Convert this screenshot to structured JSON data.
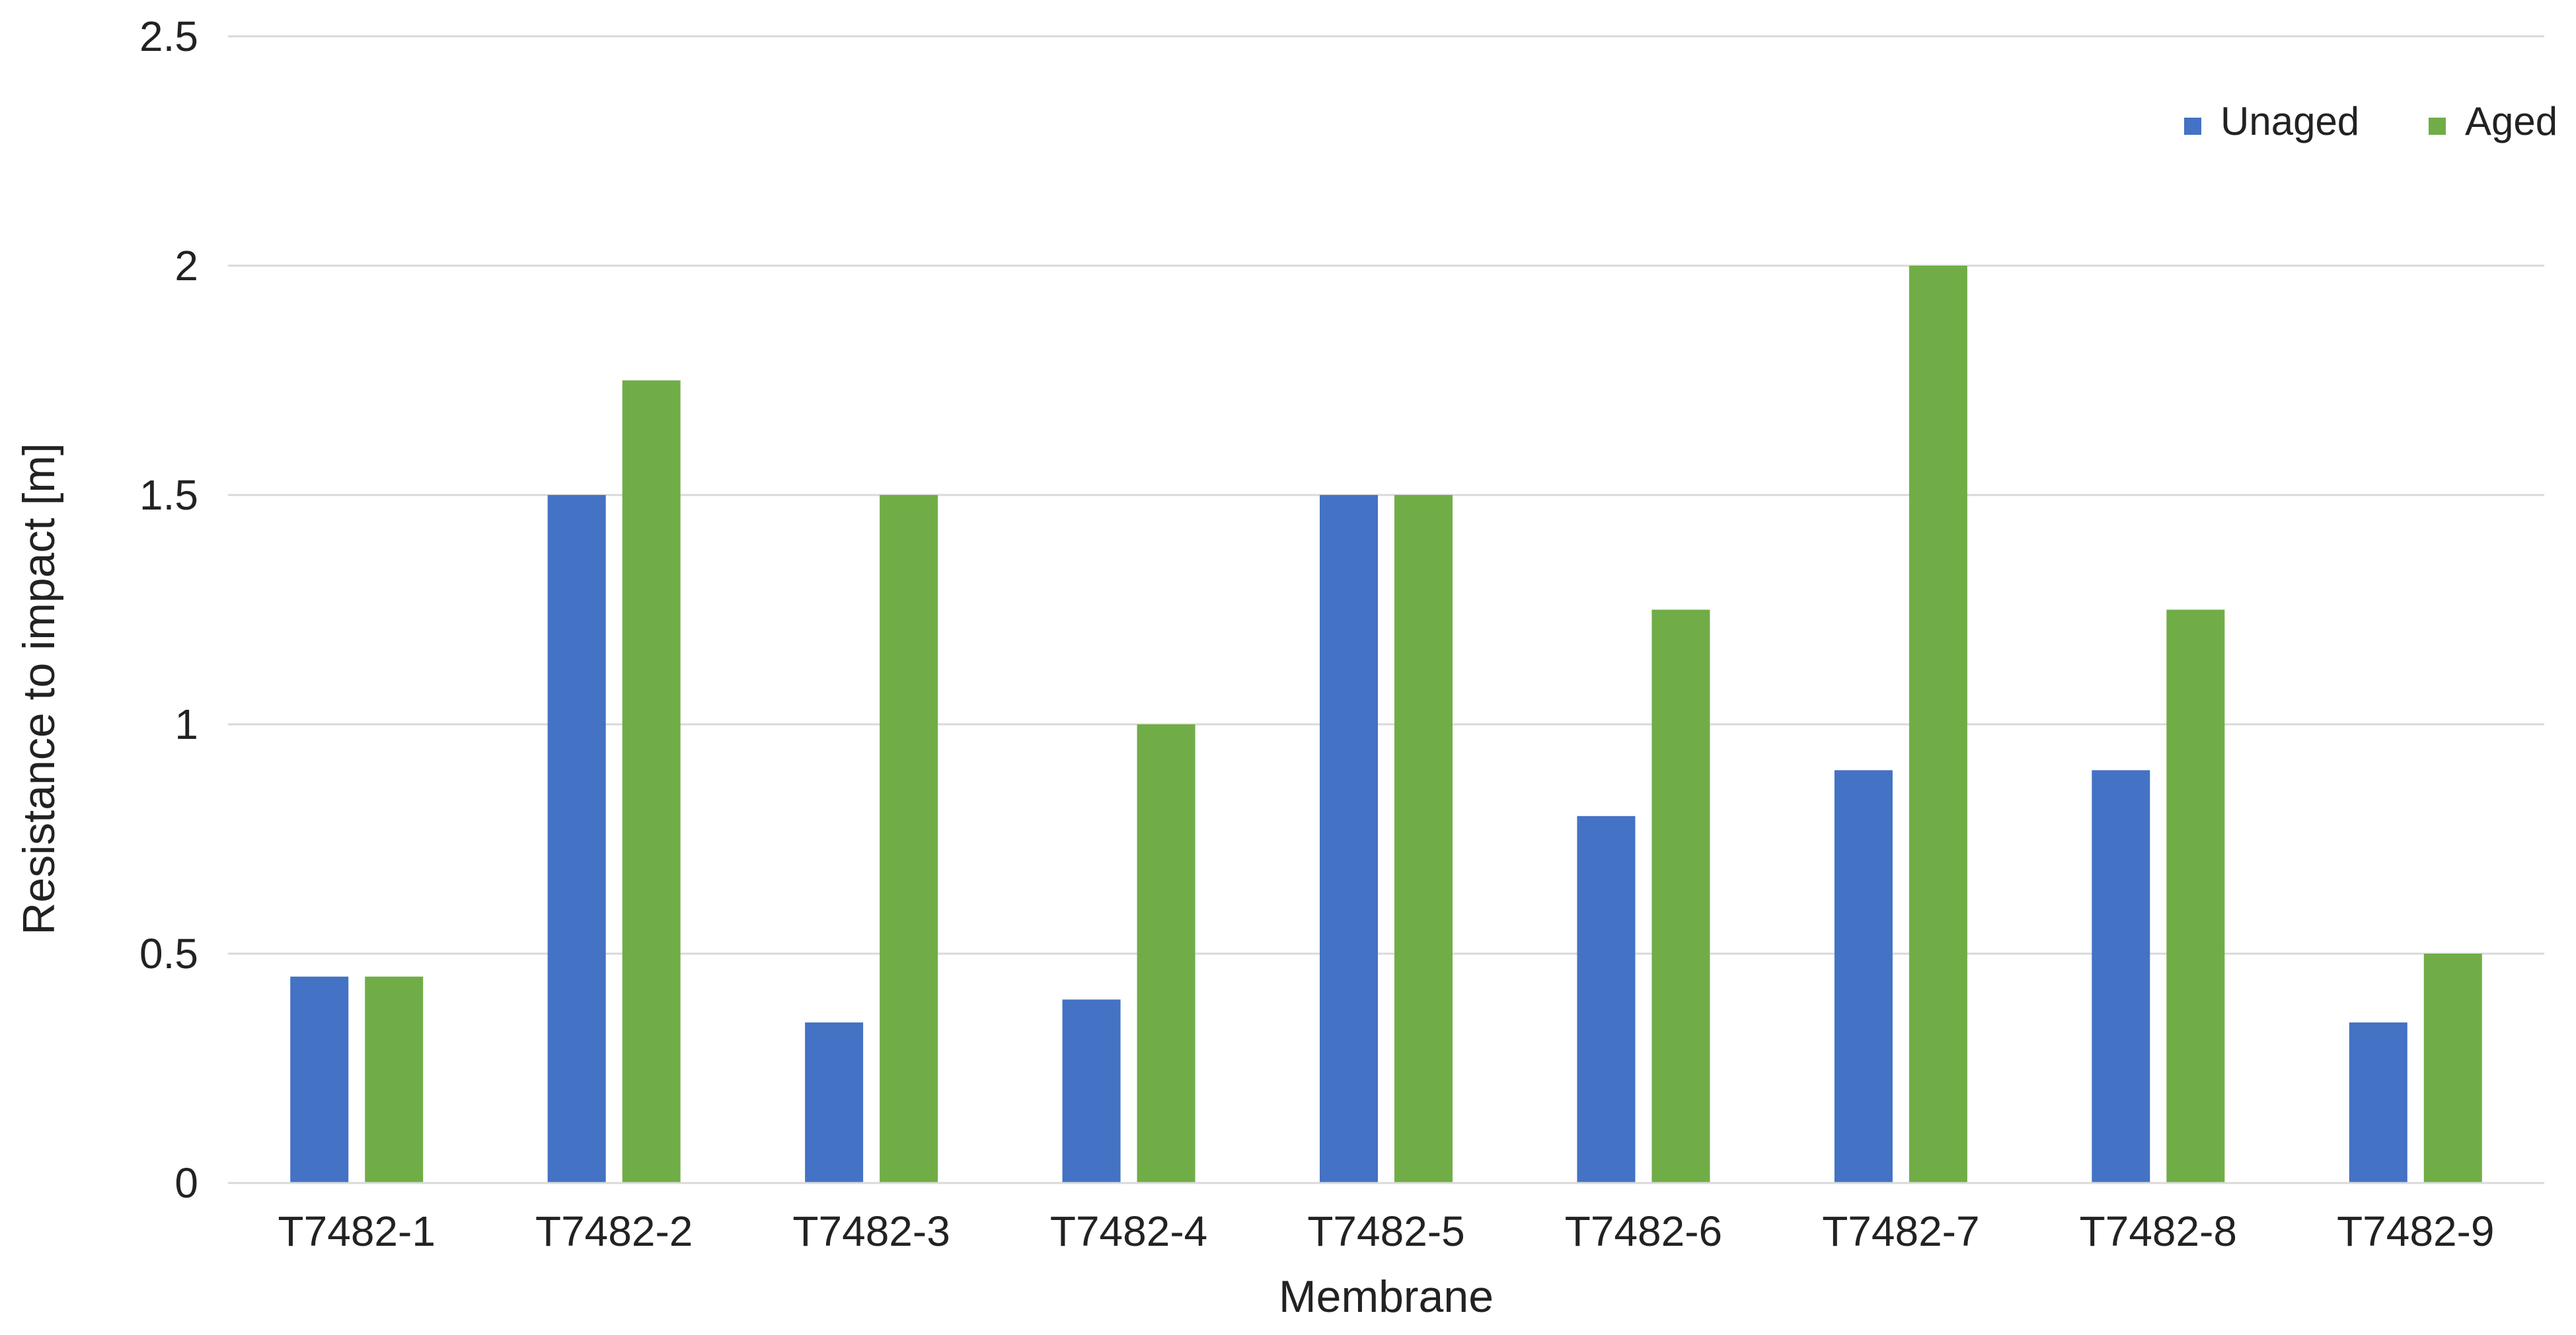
{
  "chart_data": {
    "type": "bar",
    "title": "",
    "xlabel": "Membrane",
    "ylabel": "Resistance to impact [m]",
    "categories": [
      "T7482-1",
      "T7482-2",
      "T7482-3",
      "T7482-4",
      "T7482-5",
      "T7482-6",
      "T7482-7",
      "T7482-8",
      "T7482-9"
    ],
    "series": [
      {
        "name": "Unaged",
        "color": "#4472C4",
        "values": [
          0.45,
          1.5,
          0.35,
          0.4,
          1.5,
          0.8,
          0.9,
          0.9,
          0.35
        ]
      },
      {
        "name": "Aged",
        "color": "#70AD47",
        "values": [
          0.45,
          1.75,
          1.5,
          1.0,
          1.5,
          1.25,
          2.0,
          1.25,
          0.5
        ]
      }
    ],
    "ylim": [
      0,
      2.5
    ],
    "yticks": [
      "0",
      "0.5",
      "1",
      "1.5",
      "2",
      "2.5"
    ],
    "grid": true,
    "legend_position": "top-right"
  }
}
